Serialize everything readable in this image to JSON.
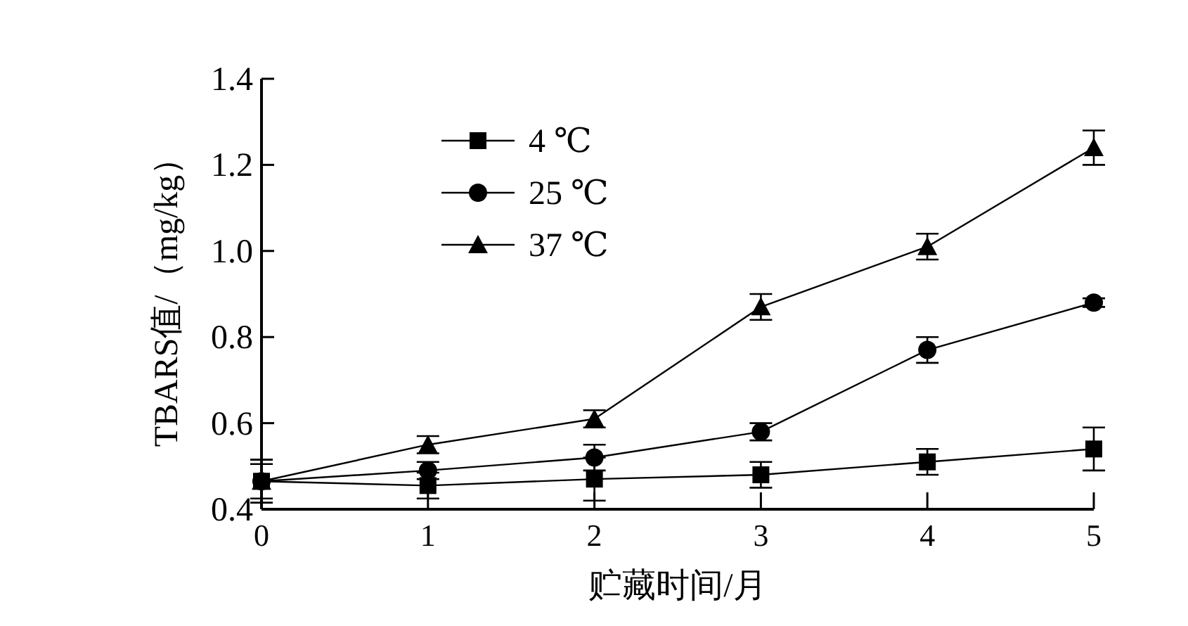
{
  "chart_data": {
    "type": "line",
    "xlabel": "贮藏时间/月",
    "ylabel": "TBARS值/（mg/kg）",
    "x": [
      0,
      1,
      2,
      3,
      4,
      5
    ],
    "xlim": [
      0,
      5
    ],
    "xticks": [
      0,
      1,
      2,
      3,
      4,
      5
    ],
    "ylim": [
      0.4,
      1.4
    ],
    "yticks": [
      0.4,
      0.6,
      0.8,
      {
        "value": 1.0,
        "label": "1.0"
      },
      1.2,
      1.4
    ],
    "legend": "top left",
    "grid": false,
    "series": [
      {
        "name": "4 ℃",
        "color": "#000000",
        "marker": "square",
        "values": [
          0.465,
          0.455,
          0.47,
          0.48,
          0.51,
          0.54
        ],
        "errors": [
          0.05,
          0.03,
          0.05,
          0.03,
          0.03,
          0.05
        ]
      },
      {
        "name": "25 ℃",
        "color": "#000000",
        "marker": "circle",
        "values": [
          0.465,
          0.49,
          0.52,
          0.58,
          0.77,
          0.88
        ],
        "errors": [
          0.04,
          0.02,
          0.03,
          0.02,
          0.03,
          0.01
        ]
      },
      {
        "name": "37 ℃",
        "color": "#000000",
        "marker": "triangle",
        "values": [
          0.465,
          0.55,
          0.61,
          0.87,
          1.01,
          1.24
        ],
        "errors": [
          0.05,
          0.02,
          0.02,
          0.03,
          0.03,
          0.04
        ]
      }
    ]
  }
}
